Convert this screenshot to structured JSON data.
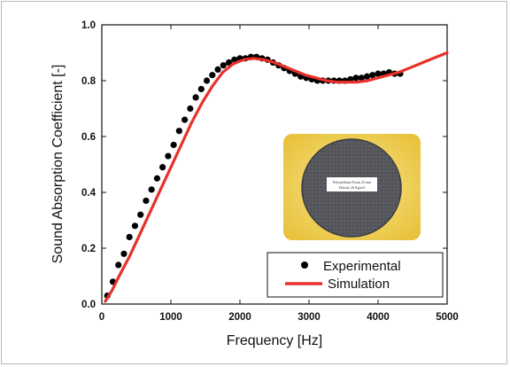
{
  "chart_data": {
    "type": "line",
    "xlabel": "Frequency [Hz]",
    "ylabel": "Sound Absorption Coefficient  [-]",
    "xlim": [
      0,
      5000
    ],
    "ylim": [
      0.0,
      1.0
    ],
    "x_ticks": [
      "0",
      "1000",
      "2000",
      "3000",
      "4000",
      "5000"
    ],
    "y_ticks": [
      "0.0",
      "0.2",
      "0.4",
      "0.6",
      "0.8",
      "1.0"
    ],
    "grid": false,
    "legend_position": "bottom-right",
    "series": [
      {
        "name": "Experimental",
        "style": "markers",
        "color": "#000000",
        "x": [
          80,
          160,
          240,
          320,
          400,
          480,
          560,
          640,
          720,
          800,
          880,
          960,
          1040,
          1120,
          1200,
          1280,
          1360,
          1440,
          1520,
          1600,
          1680,
          1760,
          1840,
          1920,
          2000,
          2080,
          2160,
          2240,
          2320,
          2400,
          2480,
          2560,
          2640,
          2720,
          2800,
          2880,
          2960,
          3040,
          3120,
          3200,
          3280,
          3360,
          3440,
          3520,
          3600,
          3680,
          3760,
          3840,
          3920,
          4000,
          4080,
          4160,
          4240,
          4320
        ],
        "y": [
          0.03,
          0.08,
          0.14,
          0.18,
          0.24,
          0.28,
          0.32,
          0.37,
          0.41,
          0.45,
          0.49,
          0.53,
          0.57,
          0.62,
          0.66,
          0.7,
          0.74,
          0.77,
          0.8,
          0.82,
          0.84,
          0.855,
          0.865,
          0.875,
          0.88,
          0.88,
          0.885,
          0.885,
          0.88,
          0.875,
          0.865,
          0.855,
          0.845,
          0.835,
          0.825,
          0.815,
          0.81,
          0.805,
          0.8,
          0.8,
          0.8,
          0.8,
          0.8,
          0.8,
          0.805,
          0.81,
          0.81,
          0.815,
          0.82,
          0.825,
          0.825,
          0.83,
          0.825,
          0.825
        ]
      },
      {
        "name": "Simulation",
        "style": "line",
        "color": "#e8302a",
        "x": [
          50,
          150,
          250,
          400,
          550,
          700,
          850,
          1000,
          1150,
          1300,
          1450,
          1600,
          1750,
          1900,
          2050,
          2200,
          2350,
          2500,
          2650,
          2800,
          2950,
          3100,
          3250,
          3400,
          3550,
          3700,
          3850,
          4000,
          4150,
          4300,
          4500,
          4700,
          4900,
          5000
        ],
        "y": [
          0.01,
          0.05,
          0.1,
          0.17,
          0.25,
          0.33,
          0.41,
          0.49,
          0.57,
          0.65,
          0.72,
          0.78,
          0.83,
          0.86,
          0.875,
          0.88,
          0.875,
          0.865,
          0.85,
          0.835,
          0.82,
          0.81,
          0.8,
          0.795,
          0.795,
          0.795,
          0.8,
          0.81,
          0.82,
          0.83,
          0.85,
          0.87,
          0.89,
          0.9
        ]
      }
    ]
  },
  "inset_photo": {
    "label_line1": "Polyurethane Foam 25 mm",
    "label_line2": "Density 26 Kg/m3"
  }
}
